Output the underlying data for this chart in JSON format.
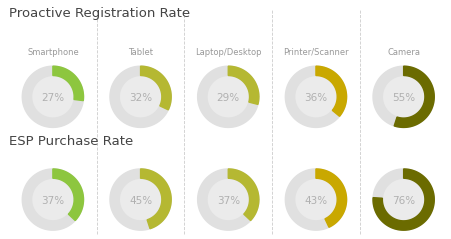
{
  "title1": "Proactive Registration Rate",
  "title2": "ESP Purchase Rate",
  "categories": [
    "Smartphone",
    "Tablet",
    "Laptop/Desktop",
    "Printer/Scanner",
    "Camera"
  ],
  "row1_values": [
    27,
    32,
    29,
    36,
    55
  ],
  "row2_values": [
    37,
    45,
    37,
    43,
    76
  ],
  "colors": [
    "#8dc63f",
    "#b5b832",
    "#b5b832",
    "#c9a800",
    "#6b6b00"
  ],
  "bg_color": "#ffffff",
  "circle_bg": "#ebebeb",
  "text_color": "#b0b0b0",
  "title_color": "#444444",
  "label_color": "#999999",
  "ring_bg_color": "#e0e0e0",
  "title1_fontsize": 9.5,
  "title2_fontsize": 9.5,
  "cat_fontsize": 6.0,
  "pct_fontsize": 7.5,
  "r_out": 1.18,
  "r_in": 0.82
}
